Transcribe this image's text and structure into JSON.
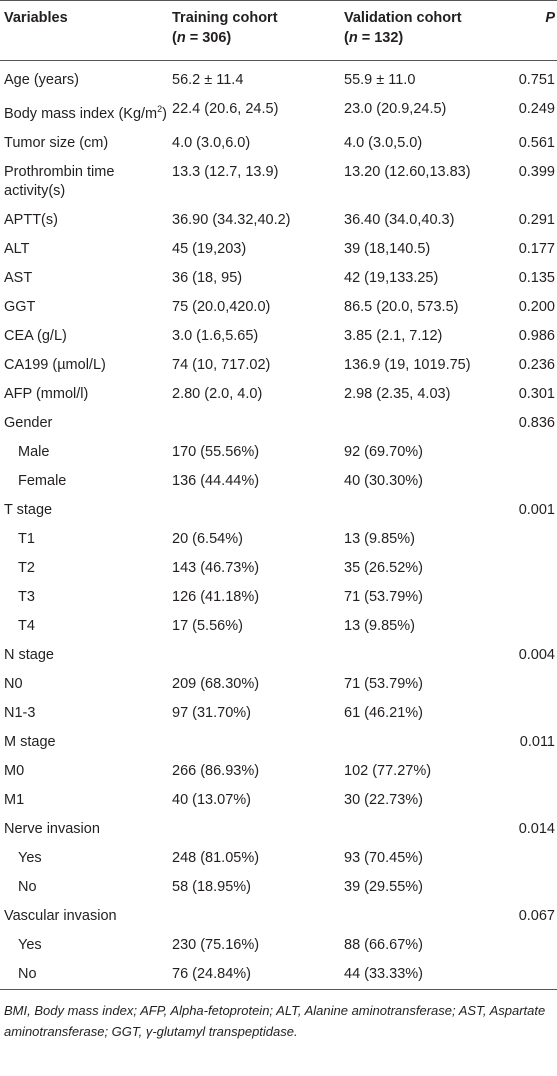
{
  "header": {
    "variables": "Variables",
    "training_title": "Training cohort",
    "training_n_label": "n",
    "training_n_value": " = 306)",
    "validation_title": "Validation cohort",
    "validation_n_label": "n",
    "validation_n_value": " = 132)",
    "p": "P"
  },
  "rows": [
    {
      "label": "Age (years)",
      "training": "56.2 ± 11.4",
      "validation": "55.9 ± 11.0",
      "p": "0.751"
    },
    {
      "label": "Body mass index (Kg/m",
      "sup": "2",
      "label_suffix": ")",
      "training": "22.4 (20.6, 24.5)",
      "validation": "23.0 (20.9,24.5)",
      "p": "0.249"
    },
    {
      "label": "Tumor size (cm)",
      "training": "4.0 (3.0,6.0)",
      "validation": "4.0 (3.0,5.0)",
      "p": "0.561"
    },
    {
      "label": "Prothrombin time activity(s)",
      "training": "13.3 (12.7, 13.9)",
      "validation": "13.20 (12.60,13.83)",
      "p": "0.399"
    },
    {
      "label": "APTT(s)",
      "training": "36.90 (34.32,40.2)",
      "validation": "36.40 (34.0,40.3)",
      "p": "0.291"
    },
    {
      "label": "ALT",
      "training": "45 (19,203)",
      "validation": "39 (18,140.5)",
      "p": "0.177"
    },
    {
      "label": "AST",
      "training": "36 (18, 95)",
      "validation": "42 (19,133.25)",
      "p": "0.135"
    },
    {
      "label": "GGT",
      "training": "75 (20.0,420.0)",
      "validation": "86.5 (20.0, 573.5)",
      "p": "0.200"
    },
    {
      "label": "CEA (g/L)",
      "training": "3.0 (1.6,5.65)",
      "validation": "3.85 (2.1, 7.12)",
      "p": "0.986"
    },
    {
      "label": "CA199 (µmol/L)",
      "training": "74 (10, 717.02)",
      "validation": "136.9 (19, 1019.75)",
      "p": "0.236"
    },
    {
      "label": "AFP (mmol/l)",
      "training": "2.80 (2.0, 4.0)",
      "validation": "2.98 (2.35, 4.03)",
      "p": "0.301"
    },
    {
      "label": "Gender",
      "training": "",
      "validation": "",
      "p": "0.836"
    },
    {
      "label": "Male",
      "indent": true,
      "training": "170 (55.56%)",
      "validation": "92 (69.70%)",
      "p": ""
    },
    {
      "label": "Female",
      "indent": true,
      "training": "136 (44.44%)",
      "validation": "40 (30.30%)",
      "p": ""
    },
    {
      "label": "T stage",
      "training": "",
      "validation": "",
      "p": "0.001"
    },
    {
      "label": "T1",
      "indent": true,
      "training": "20 (6.54%)",
      "validation": "13 (9.85%)",
      "p": ""
    },
    {
      "label": "T2",
      "indent": true,
      "training": "143 (46.73%)",
      "validation": "35 (26.52%)",
      "p": ""
    },
    {
      "label": "T3",
      "indent": true,
      "training": "126 (41.18%)",
      "validation": "71 (53.79%)",
      "p": ""
    },
    {
      "label": "T4",
      "indent": true,
      "training": "17 (5.56%)",
      "validation": "13 (9.85%)",
      "p": ""
    },
    {
      "label": "N stage",
      "training": "",
      "validation": "",
      "p": "0.004"
    },
    {
      "label": "N0",
      "training": "209 (68.30%)",
      "validation": "71 (53.79%)",
      "p": ""
    },
    {
      "label": "N1-3",
      "training": "97 (31.70%)",
      "validation": "61 (46.21%)",
      "p": ""
    },
    {
      "label": "M stage",
      "training": "",
      "validation": "",
      "p": "0.011"
    },
    {
      "label": "M0",
      "training": "266 (86.93%)",
      "validation": "102 (77.27%)",
      "p": ""
    },
    {
      "label": "M1",
      "training": "40 (13.07%)",
      "validation": "30 (22.73%)",
      "p": ""
    },
    {
      "label": "Nerve invasion",
      "training": "",
      "validation": "",
      "p": "0.014"
    },
    {
      "label": "Yes",
      "indent": true,
      "training": "248 (81.05%)",
      "validation": "93 (70.45%)",
      "p": ""
    },
    {
      "label": "No",
      "indent": true,
      "training": "58 (18.95%)",
      "validation": "39 (29.55%)",
      "p": ""
    },
    {
      "label": "Vascular invasion",
      "training": "",
      "validation": "",
      "p": "0.067"
    },
    {
      "label": "Yes",
      "indent": true,
      "training": "230 (75.16%)",
      "validation": "88 (66.67%)",
      "p": ""
    },
    {
      "label": "No",
      "indent": true,
      "training": "76 (24.84%)",
      "validation": "44 (33.33%)",
      "p": ""
    }
  ],
  "footnote": "BMI, Body mass index; AFP, Alpha-fetoprotein; ALT, Alanine aminotransferase; AST, Aspartate aminotransferase; GGT, γ-glutamyl transpeptidase."
}
